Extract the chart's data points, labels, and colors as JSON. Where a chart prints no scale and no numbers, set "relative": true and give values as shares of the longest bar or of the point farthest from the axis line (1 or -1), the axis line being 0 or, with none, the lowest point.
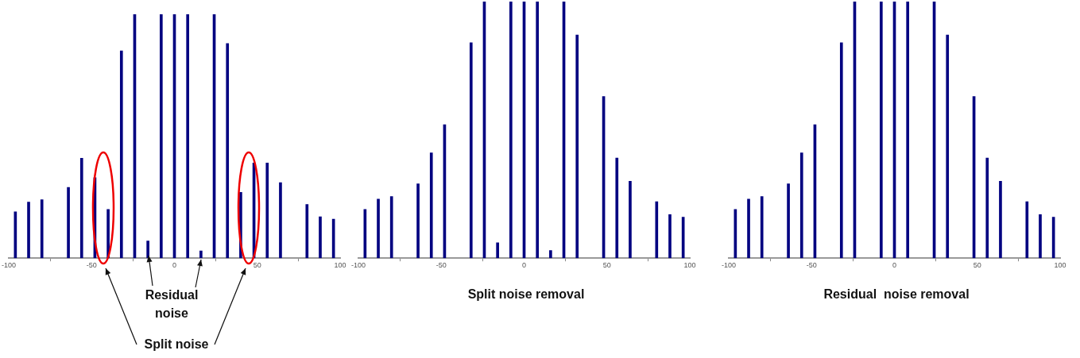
{
  "chart_data": [
    {
      "type": "bar",
      "relative": true,
      "xlim": [
        -100,
        100
      ],
      "xticks": [
        -100,
        -50,
        0,
        50,
        100
      ],
      "grid": false,
      "color": "#000080",
      "x": [
        -96,
        -88,
        -80,
        -64,
        -56,
        -48,
        -40,
        -32,
        -24,
        -16,
        -8,
        0,
        8,
        16,
        24,
        32,
        40,
        48,
        56,
        64,
        80,
        88,
        96
      ],
      "values": [
        0.19,
        0.23,
        0.24,
        0.29,
        0.41,
        0.33,
        0.2,
        0.85,
        1,
        0.07,
        1,
        1,
        1,
        0.03,
        1,
        0.88,
        0.27,
        0.39,
        0.39,
        0.31,
        0.22,
        0.17,
        0.16
      ],
      "annotations": [
        "Residual noise",
        "Split noise"
      ]
    },
    {
      "type": "bar",
      "relative": true,
      "xlim": [
        -100,
        100
      ],
      "xticks": [
        -100,
        -50,
        0,
        50,
        100
      ],
      "grid": false,
      "color": "#000080",
      "x": [
        -96,
        -88,
        -80,
        -64,
        -56,
        -48,
        -32,
        -24,
        -16,
        -8,
        0,
        8,
        16,
        24,
        32,
        48,
        56,
        64,
        80,
        88,
        96
      ],
      "values": [
        0.19,
        0.23,
        0.24,
        0.29,
        0.41,
        0.52,
        0.84,
        1,
        0.06,
        1,
        1,
        1,
        0.03,
        1,
        0.87,
        0.63,
        0.39,
        0.3,
        0.22,
        0.17,
        0.16
      ],
      "annotations": [
        "Split noise removal"
      ]
    },
    {
      "type": "bar",
      "relative": true,
      "xlim": [
        -100,
        100
      ],
      "xticks": [
        -100,
        -50,
        0,
        50,
        100
      ],
      "grid": false,
      "color": "#000080",
      "x": [
        -96,
        -88,
        -80,
        -64,
        -56,
        -48,
        -32,
        -24,
        -8,
        0,
        8,
        24,
        32,
        48,
        56,
        64,
        80,
        88,
        96
      ],
      "values": [
        0.19,
        0.23,
        0.24,
        0.29,
        0.41,
        0.52,
        0.84,
        1,
        1,
        1,
        1,
        1,
        0.87,
        0.63,
        0.39,
        0.3,
        0.22,
        0.17,
        0.16
      ],
      "annotations": [
        "Residual  noise removal"
      ]
    }
  ]
}
